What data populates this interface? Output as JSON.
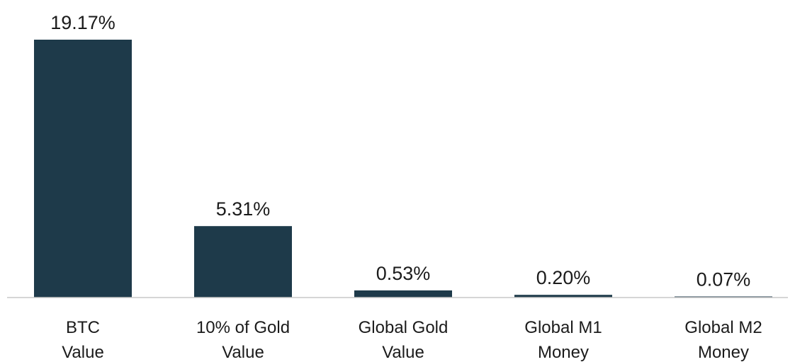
{
  "chart_data": {
    "type": "bar",
    "categories": [
      [
        "BTC",
        "Value"
      ],
      [
        "10% of Gold",
        "Value"
      ],
      [
        "Global Gold",
        "Value"
      ],
      [
        "Global M1",
        "Money"
      ],
      [
        "Global M2",
        "Money"
      ]
    ],
    "values": [
      19.17,
      5.31,
      0.53,
      0.2,
      0.07
    ],
    "value_labels": [
      "19.17%",
      "5.31%",
      "0.53%",
      "0.20%",
      "0.07%"
    ],
    "title": "",
    "xlabel": "",
    "ylabel": "",
    "ylim": [
      0,
      19.17
    ],
    "grid": false,
    "legend": "none",
    "colors": {
      "bar": "#1e3a4a",
      "baseline": "#c8c8c8",
      "text": "#1b1b1b"
    }
  }
}
